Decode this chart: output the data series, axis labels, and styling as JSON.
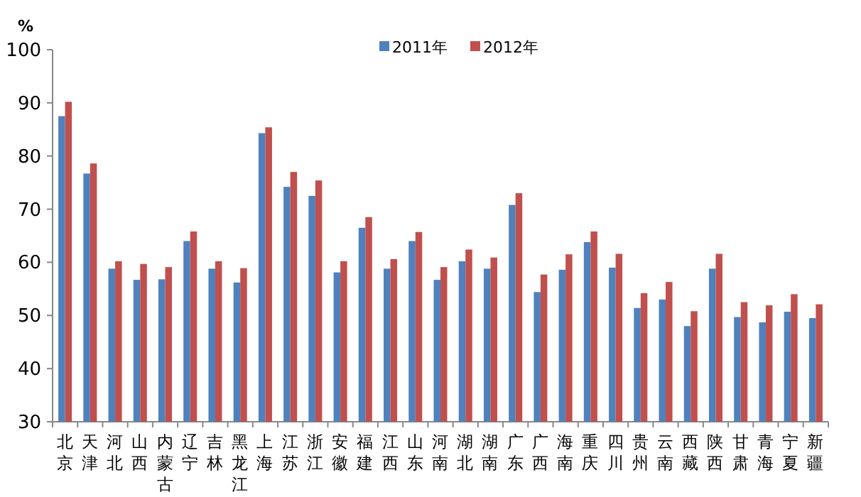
{
  "chart_data": {
    "type": "bar",
    "ylabel": "%",
    "legend": "top",
    "grid": false,
    "categories": [
      "北京",
      "天津",
      "河北",
      "山西",
      "内蒙古",
      "辽宁",
      "吉林",
      "黑龙江",
      "上海",
      "江苏",
      "浙江",
      "安徽",
      "福建",
      "江西",
      "山东",
      "河南",
      "湖北",
      "湖南",
      "广东",
      "广西",
      "海南",
      "重庆",
      "四川",
      "贵州",
      "云南",
      "西藏",
      "陕西",
      "甘肃",
      "青海",
      "宁夏",
      "新疆"
    ],
    "ylim": [
      30,
      100
    ],
    "yticks": [
      30,
      40,
      50,
      60,
      70,
      80,
      90,
      100
    ],
    "series": [
      {
        "name": "2011年",
        "color": "#4f81bd",
        "values": [
          87.5,
          76.7,
          58.8,
          56.7,
          56.8,
          64.0,
          58.8,
          56.2,
          84.3,
          74.2,
          72.5,
          58.1,
          66.5,
          58.8,
          64.0,
          56.7,
          60.2,
          58.8,
          70.8,
          54.4,
          58.6,
          63.8,
          59.0,
          51.4,
          53.0,
          48.0,
          58.8,
          49.7,
          48.7,
          50.7,
          49.5
        ]
      },
      {
        "name": "2012年",
        "color": "#c0504d",
        "values": [
          90.2,
          78.6,
          60.2,
          59.7,
          59.1,
          65.8,
          60.2,
          58.9,
          85.4,
          77.0,
          75.4,
          60.2,
          68.5,
          60.6,
          65.7,
          59.1,
          62.4,
          60.9,
          73.0,
          57.7,
          61.5,
          65.8,
          61.6,
          54.2,
          56.3,
          50.8,
          61.6,
          52.5,
          51.9,
          54.0,
          52.1
        ]
      }
    ]
  }
}
